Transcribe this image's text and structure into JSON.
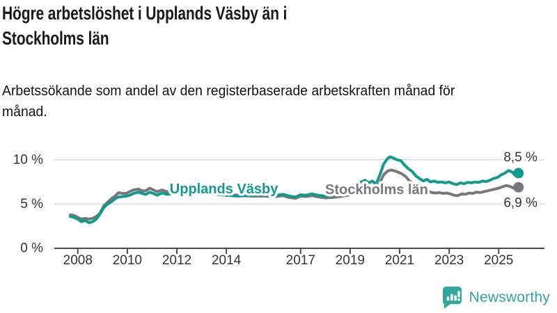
{
  "header": {
    "title": "Högre arbetslöshet i Upplands Väsby än i Stockholms län",
    "subtitle": "Arbetssökande som andel av den registerbaserade arbetskraften månad för månad."
  },
  "footer": {
    "brand": "Newsworthy"
  },
  "colors": {
    "accent_teal": "#129a8f",
    "series_gray": "#77787b",
    "gridline": "#d9d9d9",
    "axis": "#4a4a4a",
    "tick_text": "#333333",
    "annotation_text": "#333333",
    "logo_teal": "#33a39c",
    "text": "#1a1a1a"
  },
  "chart_data": {
    "type": "line",
    "title": "Högre arbetslöshet i Upplands Väsby än i Stockholms län",
    "xlabel": "",
    "ylabel": "",
    "unit": "%",
    "grid": "horizontal",
    "legend_position": "inline-labels",
    "xlim": [
      2007.05,
      2026.85
    ],
    "ylim": [
      0,
      11.4
    ],
    "x_ticks": [
      2008,
      2010,
      2012,
      2014,
      2017,
      2019,
      2021,
      2023,
      2025
    ],
    "y_ticks": [
      {
        "value": 0,
        "label": "0 %"
      },
      {
        "value": 5,
        "label": "5 %"
      },
      {
        "value": 10,
        "label": "10 %"
      }
    ],
    "series": [
      {
        "name": "Upplands Väsby",
        "color": "#129a8f",
        "last_value": 8.5,
        "end_annotation": {
          "text": "8,5 %",
          "x": 2025.2,
          "y": 10.27
        },
        "label_pos": {
          "x": 2013.9,
          "y": 6.67
        },
        "points": [
          [
            2007.7,
            3.6
          ],
          [
            2007.85,
            3.5
          ],
          [
            2008.0,
            3.3
          ],
          [
            2008.15,
            3.0
          ],
          [
            2008.3,
            3.15
          ],
          [
            2008.45,
            2.9
          ],
          [
            2008.6,
            3.0
          ],
          [
            2008.75,
            3.3
          ],
          [
            2008.9,
            3.9
          ],
          [
            2009.05,
            4.6
          ],
          [
            2009.2,
            5.0
          ],
          [
            2009.35,
            5.25
          ],
          [
            2009.5,
            5.6
          ],
          [
            2009.65,
            5.8
          ],
          [
            2009.8,
            5.85
          ],
          [
            2009.95,
            5.9
          ],
          [
            2010.1,
            6.0
          ],
          [
            2010.25,
            6.2
          ],
          [
            2010.45,
            6.35
          ],
          [
            2010.6,
            6.2
          ],
          [
            2010.75,
            6.1
          ],
          [
            2010.9,
            6.35
          ],
          [
            2011.05,
            6.2
          ],
          [
            2011.2,
            6.0
          ],
          [
            2011.4,
            6.25
          ],
          [
            2011.6,
            6.1
          ],
          [
            2011.8,
            6.15
          ],
          [
            2012.0,
            6.2
          ],
          [
            2012.5,
            6.3
          ],
          [
            2013.0,
            6.2
          ],
          [
            2013.5,
            6.1
          ],
          [
            2014.0,
            6.0
          ],
          [
            2014.5,
            5.9
          ],
          [
            2015.0,
            6.0
          ],
          [
            2015.5,
            6.05
          ],
          [
            2016.0,
            6.0
          ],
          [
            2016.3,
            6.1
          ],
          [
            2016.55,
            5.9
          ],
          [
            2016.8,
            5.8
          ],
          [
            2017.0,
            6.05
          ],
          [
            2017.2,
            6.0
          ],
          [
            2017.45,
            6.15
          ],
          [
            2017.7,
            6.0
          ],
          [
            2018.0,
            5.9
          ],
          [
            2018.3,
            6.0
          ],
          [
            2018.6,
            6.2
          ],
          [
            2018.9,
            6.7
          ],
          [
            2019.1,
            7.1
          ],
          [
            2019.3,
            7.3
          ],
          [
            2019.45,
            7.5
          ],
          [
            2019.6,
            7.7
          ],
          [
            2019.75,
            7.4
          ],
          [
            2019.9,
            7.6
          ],
          [
            2020.05,
            7.25
          ],
          [
            2020.2,
            8.3
          ],
          [
            2020.35,
            9.5
          ],
          [
            2020.5,
            10.1
          ],
          [
            2020.6,
            10.35
          ],
          [
            2020.75,
            10.2
          ],
          [
            2020.9,
            10.0
          ],
          [
            2021.05,
            9.9
          ],
          [
            2021.2,
            9.4
          ],
          [
            2021.35,
            9.0
          ],
          [
            2021.5,
            8.7
          ],
          [
            2021.65,
            8.2
          ],
          [
            2021.8,
            7.9
          ],
          [
            2021.95,
            7.6
          ],
          [
            2022.1,
            7.8
          ],
          [
            2022.25,
            7.5
          ],
          [
            2022.4,
            7.6
          ],
          [
            2022.55,
            7.45
          ],
          [
            2022.7,
            7.5
          ],
          [
            2022.85,
            7.4
          ],
          [
            2023.0,
            7.5
          ],
          [
            2023.15,
            7.3
          ],
          [
            2023.3,
            7.2
          ],
          [
            2023.45,
            7.4
          ],
          [
            2023.6,
            7.3
          ],
          [
            2023.75,
            7.45
          ],
          [
            2023.9,
            7.4
          ],
          [
            2024.05,
            7.5
          ],
          [
            2024.2,
            7.45
          ],
          [
            2024.35,
            7.6
          ],
          [
            2024.5,
            7.55
          ],
          [
            2024.65,
            7.7
          ],
          [
            2024.8,
            7.9
          ],
          [
            2024.95,
            8.0
          ],
          [
            2025.1,
            8.3
          ],
          [
            2025.25,
            8.5
          ],
          [
            2025.4,
            8.8
          ],
          [
            2025.55,
            8.6
          ],
          [
            2025.65,
            8.3
          ],
          [
            2025.8,
            8.5
          ]
        ]
      },
      {
        "name": "Stockholms län",
        "color": "#77787b",
        "last_value": 6.9,
        "end_annotation": {
          "text": "6,9 %",
          "x": 2025.2,
          "y": 5.1
        },
        "label_pos": {
          "x": 2020.07,
          "y": 6.59
        },
        "points": [
          [
            2007.7,
            3.8
          ],
          [
            2007.85,
            3.7
          ],
          [
            2008.0,
            3.5
          ],
          [
            2008.15,
            3.3
          ],
          [
            2008.3,
            3.4
          ],
          [
            2008.45,
            3.3
          ],
          [
            2008.6,
            3.4
          ],
          [
            2008.75,
            3.6
          ],
          [
            2008.9,
            4.0
          ],
          [
            2009.05,
            4.8
          ],
          [
            2009.2,
            5.2
          ],
          [
            2009.35,
            5.6
          ],
          [
            2009.5,
            5.9
          ],
          [
            2009.65,
            6.3
          ],
          [
            2009.8,
            6.2
          ],
          [
            2009.95,
            6.2
          ],
          [
            2010.1,
            6.4
          ],
          [
            2010.25,
            6.6
          ],
          [
            2010.45,
            6.7
          ],
          [
            2010.6,
            6.5
          ],
          [
            2010.75,
            6.5
          ],
          [
            2010.9,
            6.8
          ],
          [
            2011.05,
            6.6
          ],
          [
            2011.2,
            6.4
          ],
          [
            2011.4,
            6.6
          ],
          [
            2011.6,
            6.4
          ],
          [
            2011.8,
            6.45
          ],
          [
            2012.0,
            6.4
          ],
          [
            2012.5,
            6.4
          ],
          [
            2013.0,
            6.3
          ],
          [
            2013.5,
            6.2
          ],
          [
            2014.0,
            6.1
          ],
          [
            2014.5,
            6.0
          ],
          [
            2015.0,
            5.9
          ],
          [
            2015.5,
            5.9
          ],
          [
            2016.0,
            5.85
          ],
          [
            2016.3,
            5.95
          ],
          [
            2016.55,
            5.75
          ],
          [
            2016.8,
            5.65
          ],
          [
            2017.0,
            5.9
          ],
          [
            2017.2,
            5.85
          ],
          [
            2017.45,
            5.95
          ],
          [
            2017.7,
            5.8
          ],
          [
            2018.0,
            5.7
          ],
          [
            2018.3,
            5.75
          ],
          [
            2018.6,
            5.85
          ],
          [
            2018.9,
            6.0
          ],
          [
            2019.2,
            6.2
          ],
          [
            2019.5,
            6.35
          ],
          [
            2019.75,
            6.5
          ],
          [
            2019.9,
            6.6
          ],
          [
            2020.05,
            6.5
          ],
          [
            2020.2,
            7.4
          ],
          [
            2020.35,
            8.3
          ],
          [
            2020.5,
            8.7
          ],
          [
            2020.65,
            8.85
          ],
          [
            2020.8,
            8.75
          ],
          [
            2020.95,
            8.6
          ],
          [
            2021.1,
            8.4
          ],
          [
            2021.25,
            8.1
          ],
          [
            2021.4,
            7.6
          ],
          [
            2021.55,
            7.3
          ],
          [
            2021.7,
            7.0
          ],
          [
            2021.85,
            6.8
          ],
          [
            2022.0,
            6.7
          ],
          [
            2022.15,
            6.5
          ],
          [
            2022.3,
            6.3
          ],
          [
            2022.45,
            6.25
          ],
          [
            2022.6,
            6.3
          ],
          [
            2022.75,
            6.2
          ],
          [
            2022.9,
            6.25
          ],
          [
            2023.05,
            6.15
          ],
          [
            2023.2,
            6.0
          ],
          [
            2023.35,
            5.95
          ],
          [
            2023.5,
            6.15
          ],
          [
            2023.65,
            6.1
          ],
          [
            2023.8,
            6.25
          ],
          [
            2023.95,
            6.2
          ],
          [
            2024.1,
            6.35
          ],
          [
            2024.25,
            6.3
          ],
          [
            2024.4,
            6.4
          ],
          [
            2024.55,
            6.5
          ],
          [
            2024.7,
            6.6
          ],
          [
            2024.85,
            6.7
          ],
          [
            2025.0,
            6.8
          ],
          [
            2025.15,
            6.95
          ],
          [
            2025.3,
            7.1
          ],
          [
            2025.45,
            7.0
          ],
          [
            2025.6,
            6.8
          ],
          [
            2025.7,
            7.05
          ],
          [
            2025.8,
            6.9
          ]
        ]
      }
    ]
  }
}
